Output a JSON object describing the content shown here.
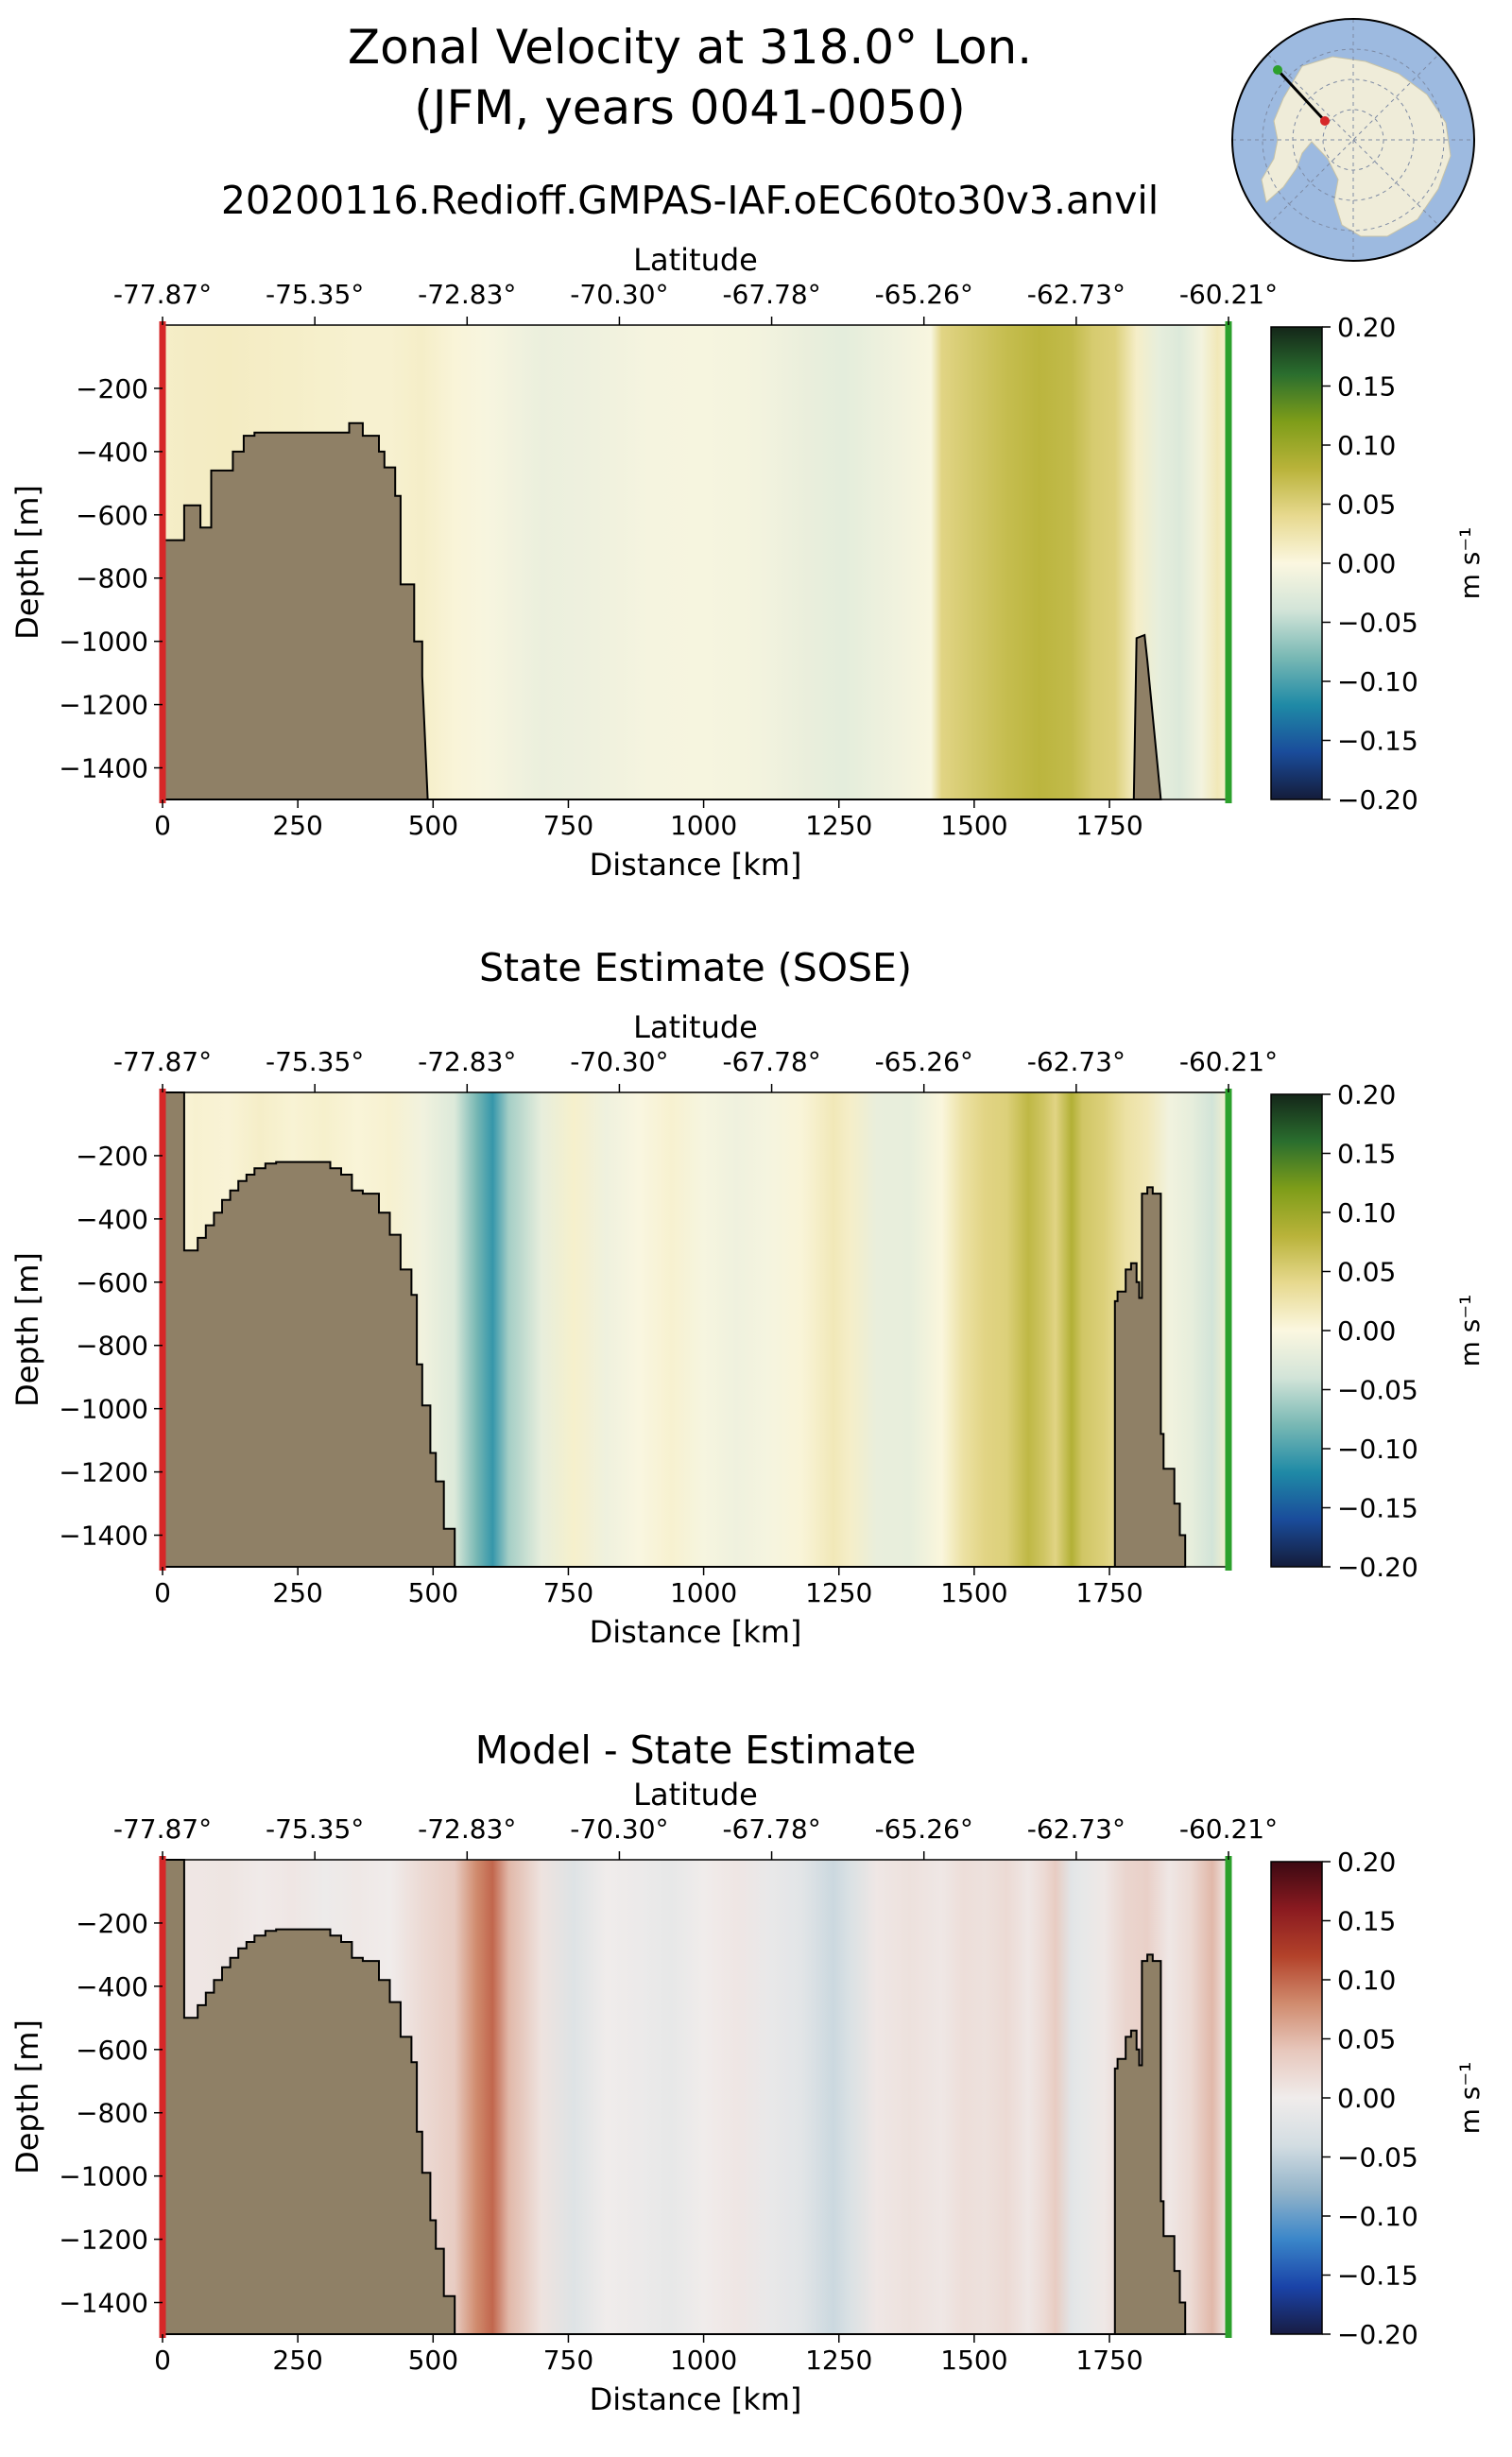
{
  "figure": {
    "title_line1": "Zonal Velocity at 318.0° Lon.",
    "title_line2": "(JFM, years 0041-0050)",
    "run_name": "20200116.Redioff.GMPAS-IAF.oEC60to30v3.anvil",
    "inset_map": "antarctica-polar-stereo-map"
  },
  "chart_data": [
    {
      "type": "heatmap",
      "title": "20200116.Redioff.GMPAS-IAF.oEC60to30v3.anvil",
      "xlabel": "Distance [km]",
      "ylabel": "Depth [m]",
      "top_axis_label": "Latitude",
      "x_ticks": [
        "0",
        "250",
        "500",
        "750",
        "1000",
        "1250",
        "1500",
        "1750"
      ],
      "x_tick_values": [
        0,
        250,
        500,
        750,
        1000,
        1250,
        1500,
        1750
      ],
      "lat_ticks": [
        "-77.87°",
        "-75.35°",
        "-72.83°",
        "-70.30°",
        "-67.78°",
        "-65.26°",
        "-62.73°",
        "-60.21°"
      ],
      "y_ticks": [
        "−200",
        "−400",
        "−600",
        "−800",
        "−1000",
        "−1200",
        "−1400"
      ],
      "y_tick_values": [
        -200,
        -400,
        -600,
        -800,
        -1000,
        -1200,
        -1400
      ],
      "xlim": [
        0,
        1970
      ],
      "ylim": [
        -1500,
        0
      ],
      "colorbar": {
        "label": "m s⁻¹",
        "colormap": "delta-like",
        "range": [
          -0.2,
          0.2
        ],
        "ticks": [
          "0.20",
          "0.15",
          "0.10",
          "0.05",
          "0.00",
          "−0.05",
          "−0.10",
          "−0.15",
          "−0.20"
        ],
        "stops": [
          "#141c3a",
          "#1a4c9b",
          "#1f8aa6",
          "#78b8b4",
          "#d2e4d8",
          "#fbf7e0",
          "#e7d98f",
          "#b9b33a",
          "#7e9d19",
          "#2a6e2e",
          "#142619"
        ]
      },
      "velocity_profile": {
        "x": [
          0,
          60,
          120,
          180,
          240,
          300,
          360,
          420,
          480,
          540,
          600,
          700,
          800,
          900,
          1000,
          1100,
          1200,
          1260,
          1320,
          1380,
          1420,
          1440,
          1500,
          1560,
          1620,
          1680,
          1720,
          1760,
          1800,
          1840,
          1880,
          1920,
          1950,
          1970
        ],
        "v": [
          0.012,
          0.014,
          0.015,
          0.013,
          0.012,
          0.01,
          0.008,
          0.008,
          0.012,
          0.004,
          -0.004,
          -0.016,
          -0.012,
          -0.006,
          -0.005,
          -0.008,
          -0.018,
          -0.022,
          -0.015,
          -0.008,
          -0.003,
          0.045,
          0.058,
          0.07,
          0.078,
          0.072,
          0.055,
          0.05,
          0.012,
          -0.02,
          -0.03,
          -0.008,
          0.02,
          0.01
        ]
      },
      "bathymetry": {
        "x": [
          0,
          10,
          10,
          40,
          40,
          70,
          70,
          90,
          90,
          130,
          130,
          150,
          150,
          170,
          170,
          345,
          345,
          370,
          370,
          400,
          400,
          410,
          410,
          430,
          430,
          440,
          440,
          465,
          465,
          480,
          480,
          490,
          1795,
          1800,
          1815,
          1820,
          1845
        ],
        "depth": [
          -680,
          -680,
          -680,
          -680,
          -570,
          -570,
          -640,
          -640,
          -460,
          -460,
          -400,
          -400,
          -350,
          -350,
          -340,
          -340,
          -310,
          -310,
          -350,
          -350,
          -400,
          -400,
          -450,
          -450,
          -540,
          -540,
          -820,
          -820,
          -1000,
          -1000,
          -1110,
          -1500,
          -1500,
          -990,
          -980,
          -1060,
          -1500
        ]
      },
      "section_start_color": "#d62728",
      "section_end_color": "#2ca02c"
    },
    {
      "type": "heatmap",
      "title": "State Estimate (SOSE)",
      "xlabel": "Distance [km]",
      "ylabel": "Depth [m]",
      "top_axis_label": "Latitude",
      "x_ticks": [
        "0",
        "250",
        "500",
        "750",
        "1000",
        "1250",
        "1500",
        "1750"
      ],
      "x_tick_values": [
        0,
        250,
        500,
        750,
        1000,
        1250,
        1500,
        1750
      ],
      "lat_ticks": [
        "-77.87°",
        "-75.35°",
        "-72.83°",
        "-70.30°",
        "-67.78°",
        "-65.26°",
        "-62.73°",
        "-60.21°"
      ],
      "y_ticks": [
        "−200",
        "−400",
        "−600",
        "−800",
        "−1000",
        "−1200",
        "−1400"
      ],
      "y_tick_values": [
        -200,
        -400,
        -600,
        -800,
        -1000,
        -1200,
        -1400
      ],
      "xlim": [
        0,
        1970
      ],
      "ylim": [
        -1500,
        0
      ],
      "colorbar": {
        "label": "m s⁻¹",
        "colormap": "delta-like",
        "range": [
          -0.2,
          0.2
        ],
        "ticks": [
          "0.20",
          "0.15",
          "0.10",
          "0.05",
          "0.00",
          "−0.05",
          "−0.10",
          "−0.15",
          "−0.20"
        ],
        "stops": [
          "#141c3a",
          "#1a4c9b",
          "#1f8aa6",
          "#78b8b4",
          "#d2e4d8",
          "#fbf7e0",
          "#e7d98f",
          "#b9b33a",
          "#7e9d19",
          "#2a6e2e",
          "#142619"
        ]
      },
      "velocity_profile": {
        "x": [
          0,
          60,
          120,
          180,
          240,
          300,
          360,
          420,
          480,
          540,
          580,
          610,
          640,
          700,
          760,
          820,
          880,
          940,
          1000,
          1060,
          1120,
          1180,
          1240,
          1270,
          1320,
          1380,
          1440,
          1480,
          1520,
          1560,
          1600,
          1630,
          1650,
          1680,
          1700,
          1740,
          1780,
          1820,
          1860,
          1900,
          1940,
          1970
        ],
        "v": [
          0.0,
          0.008,
          0.005,
          0.012,
          0.006,
          0.01,
          0.004,
          0.008,
          -0.01,
          -0.03,
          -0.08,
          -0.11,
          -0.06,
          -0.02,
          0.01,
          -0.012,
          -0.002,
          0.008,
          -0.005,
          -0.012,
          -0.006,
          0.004,
          0.02,
          0.012,
          -0.018,
          -0.02,
          0.002,
          0.03,
          0.045,
          0.05,
          0.075,
          0.06,
          0.045,
          0.085,
          0.06,
          0.05,
          0.03,
          0.02,
          -0.01,
          -0.02,
          -0.04,
          0.01
        ]
      },
      "bathymetry": {
        "x": [
          0,
          40,
          40,
          65,
          65,
          80,
          80,
          95,
          95,
          110,
          110,
          125,
          125,
          140,
          140,
          155,
          155,
          170,
          170,
          190,
          190,
          210,
          210,
          310,
          310,
          330,
          330,
          350,
          350,
          370,
          370,
          400,
          400,
          420,
          420,
          440,
          440,
          460,
          460,
          470,
          470,
          480,
          480,
          495,
          495,
          505,
          505,
          520,
          520,
          540,
          540,
          1760,
          1760,
          1765,
          1765,
          1780,
          1780,
          1790,
          1790,
          1800,
          1800,
          1805,
          1805,
          1810,
          1810,
          1820,
          1820,
          1830,
          1830,
          1845,
          1845,
          1850,
          1850,
          1870,
          1870,
          1880,
          1880,
          1890,
          1890
        ],
        "depth": [
          0,
          0,
          -500,
          -500,
          -460,
          -460,
          -420,
          -420,
          -380,
          -380,
          -340,
          -340,
          -310,
          -310,
          -280,
          -280,
          -260,
          -260,
          -240,
          -240,
          -225,
          -225,
          -220,
          -220,
          -240,
          -240,
          -260,
          -260,
          -310,
          -310,
          -320,
          -320,
          -380,
          -380,
          -450,
          -450,
          -560,
          -560,
          -640,
          -640,
          -860,
          -860,
          -990,
          -990,
          -1140,
          -1140,
          -1230,
          -1230,
          -1380,
          -1380,
          -1500,
          -1500,
          -660,
          -660,
          -630,
          -630,
          -560,
          -560,
          -540,
          -540,
          -600,
          -600,
          -650,
          -650,
          -320,
          -320,
          -300,
          -300,
          -320,
          -320,
          -1080,
          -1080,
          -1190,
          -1190,
          -1300,
          -1300,
          -1400,
          -1400,
          -1500
        ]
      },
      "section_start_color": "#d62728",
      "section_end_color": "#2ca02c"
    },
    {
      "type": "heatmap",
      "title": "Model - State Estimate",
      "xlabel": "Distance [km]",
      "ylabel": "Depth [m]",
      "top_axis_label": "Latitude",
      "x_ticks": [
        "0",
        "250",
        "500",
        "750",
        "1000",
        "1250",
        "1500",
        "1750"
      ],
      "x_tick_values": [
        0,
        250,
        500,
        750,
        1000,
        1250,
        1500,
        1750
      ],
      "lat_ticks": [
        "-77.87°",
        "-75.35°",
        "-72.83°",
        "-70.30°",
        "-67.78°",
        "-65.26°",
        "-62.73°",
        "-60.21°"
      ],
      "y_ticks": [
        "−200",
        "−400",
        "−600",
        "−800",
        "−1000",
        "−1200",
        "−1400"
      ],
      "y_tick_values": [
        -200,
        -400,
        -600,
        -800,
        -1000,
        -1200,
        -1400
      ],
      "xlim": [
        0,
        1970
      ],
      "ylim": [
        -1500,
        0
      ],
      "colorbar": {
        "label": "m s⁻¹",
        "colormap": "balance",
        "range": [
          -0.2,
          0.2
        ],
        "ticks": [
          "0.20",
          "0.15",
          "0.10",
          "0.05",
          "0.00",
          "−0.05",
          "−0.10",
          "−0.15",
          "−0.20"
        ],
        "stops": [
          "#181c43",
          "#1a43a8",
          "#3a86c9",
          "#92b3c9",
          "#d3dde2",
          "#f0eceb",
          "#e7c7bc",
          "#d08b6e",
          "#b3422a",
          "#8a1a20",
          "#3c0912"
        ]
      },
      "velocity_profile": {
        "x": [
          0,
          60,
          120,
          180,
          240,
          300,
          360,
          420,
          480,
          540,
          580,
          610,
          640,
          700,
          760,
          820,
          880,
          940,
          1000,
          1060,
          1120,
          1180,
          1240,
          1270,
          1320,
          1380,
          1440,
          1480,
          1520,
          1560,
          1600,
          1630,
          1650,
          1680,
          1700,
          1740,
          1780,
          1820,
          1860,
          1900,
          1940,
          1970
        ],
        "v": [
          0.008,
          0.006,
          0.008,
          0.002,
          0.006,
          -0.004,
          0.004,
          0.0,
          0.02,
          0.035,
          0.08,
          0.1,
          0.05,
          0.01,
          -0.025,
          0.0,
          -0.005,
          -0.012,
          0.0,
          0.006,
          -0.01,
          -0.02,
          -0.045,
          -0.03,
          0.005,
          0.012,
          0.005,
          0.015,
          0.012,
          0.02,
          0.005,
          0.02,
          0.035,
          -0.02,
          -0.012,
          0.004,
          0.025,
          0.03,
          0.005,
          0.02,
          0.05,
          0.0
        ]
      },
      "bathymetry": {
        "x": [
          0,
          40,
          40,
          65,
          65,
          80,
          80,
          95,
          95,
          110,
          110,
          125,
          125,
          140,
          140,
          155,
          155,
          170,
          170,
          190,
          190,
          210,
          210,
          310,
          310,
          330,
          330,
          350,
          350,
          370,
          370,
          400,
          400,
          420,
          420,
          440,
          440,
          460,
          460,
          470,
          470,
          480,
          480,
          495,
          495,
          505,
          505,
          520,
          520,
          540,
          540,
          1760,
          1760,
          1765,
          1765,
          1780,
          1780,
          1790,
          1790,
          1800,
          1800,
          1805,
          1805,
          1810,
          1810,
          1820,
          1820,
          1830,
          1830,
          1845,
          1845,
          1850,
          1850,
          1870,
          1870,
          1880,
          1880,
          1890,
          1890
        ],
        "depth": [
          0,
          0,
          -500,
          -500,
          -460,
          -460,
          -420,
          -420,
          -380,
          -380,
          -340,
          -340,
          -310,
          -310,
          -280,
          -280,
          -260,
          -260,
          -240,
          -240,
          -225,
          -225,
          -220,
          -220,
          -240,
          -240,
          -260,
          -260,
          -310,
          -310,
          -320,
          -320,
          -380,
          -380,
          -450,
          -450,
          -560,
          -560,
          -640,
          -640,
          -860,
          -860,
          -990,
          -990,
          -1140,
          -1140,
          -1230,
          -1230,
          -1380,
          -1380,
          -1500,
          -1500,
          -660,
          -660,
          -630,
          -630,
          -560,
          -560,
          -540,
          -540,
          -600,
          -600,
          -650,
          -650,
          -320,
          -320,
          -300,
          -300,
          -320,
          -320,
          -1080,
          -1080,
          -1190,
          -1190,
          -1300,
          -1300,
          -1400,
          -1400,
          -1500
        ]
      },
      "section_start_color": "#d62728",
      "section_end_color": "#2ca02c"
    }
  ]
}
